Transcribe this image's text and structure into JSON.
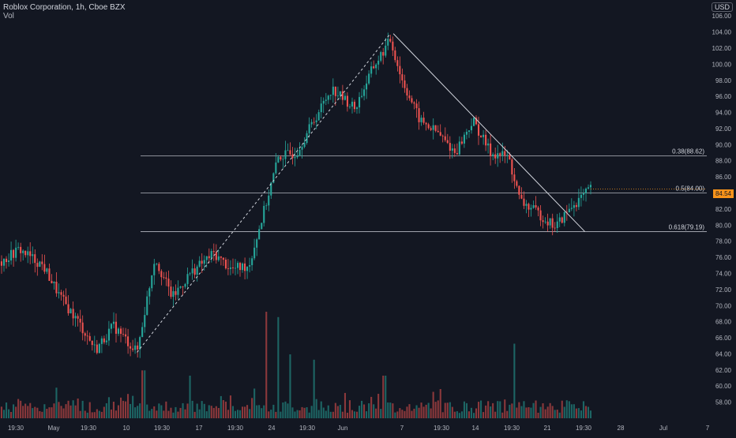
{
  "header": {
    "title": "Roblox Corporation, 1h, Cboe BZX",
    "volume_label": "Vol"
  },
  "currency_label": "USD",
  "colors": {
    "background": "#131722",
    "up": "#26a69a",
    "down": "#ef5350",
    "grid": "#1e222d",
    "axis_text": "#b2b5be",
    "line": "#d1d4dc",
    "price_badge": "#f7931a"
  },
  "chart_data": {
    "type": "candlestick",
    "title": "Roblox Corporation, 1h, Cboe BZX",
    "ylim": [
      56,
      107
    ],
    "y_ticks": [
      58,
      60,
      62,
      64,
      66,
      68,
      70,
      72,
      74,
      76,
      78,
      80,
      82,
      84,
      86,
      88,
      90,
      92,
      94,
      96,
      98,
      100,
      102,
      104,
      106
    ],
    "x_tick_labels": [
      "19:30",
      "May",
      "19:30",
      "10",
      "19:30",
      "17",
      "19:30",
      "24",
      "19:30",
      "Jun",
      "7",
      "19:30",
      "14",
      "19:30",
      "21",
      "19:30",
      "28",
      "Jul",
      "7"
    ],
    "price_path": [
      {
        "t": 0,
        "p": 75.5
      },
      {
        "t": 0.03,
        "p": 77.0
      },
      {
        "t": 0.07,
        "p": 75.0
      },
      {
        "t": 0.1,
        "p": 71.0
      },
      {
        "t": 0.13,
        "p": 68.0
      },
      {
        "t": 0.16,
        "p": 64.5
      },
      {
        "t": 0.19,
        "p": 67.5
      },
      {
        "t": 0.23,
        "p": 64.2
      },
      {
        "t": 0.26,
        "p": 76.0
      },
      {
        "t": 0.29,
        "p": 71.0
      },
      {
        "t": 0.32,
        "p": 74.0
      },
      {
        "t": 0.36,
        "p": 76.5
      },
      {
        "t": 0.39,
        "p": 74.5
      },
      {
        "t": 0.42,
        "p": 75.0
      },
      {
        "t": 0.45,
        "p": 83.0
      },
      {
        "t": 0.47,
        "p": 88.5
      },
      {
        "t": 0.5,
        "p": 89.0
      },
      {
        "t": 0.53,
        "p": 93.0
      },
      {
        "t": 0.56,
        "p": 97.0
      },
      {
        "t": 0.6,
        "p": 94.5
      },
      {
        "t": 0.63,
        "p": 99.5
      },
      {
        "t": 0.66,
        "p": 103.0
      },
      {
        "t": 0.68,
        "p": 98.0
      },
      {
        "t": 0.71,
        "p": 93.0
      },
      {
        "t": 0.74,
        "p": 91.5
      },
      {
        "t": 0.77,
        "p": 89.0
      },
      {
        "t": 0.8,
        "p": 93.0
      },
      {
        "t": 0.83,
        "p": 89.0
      },
      {
        "t": 0.86,
        "p": 88.5
      },
      {
        "t": 0.88,
        "p": 83.0
      },
      {
        "t": 0.91,
        "p": 81.5
      },
      {
        "t": 0.94,
        "p": 79.8
      },
      {
        "t": 0.97,
        "p": 82.5
      },
      {
        "t": 1.0,
        "p": 84.5
      }
    ],
    "volume_spikes": [
      {
        "t": 0.45,
        "v": 1.0
      },
      {
        "t": 0.47,
        "v": 0.95
      },
      {
        "t": 0.53,
        "v": 0.55
      },
      {
        "t": 0.87,
        "v": 0.7
      },
      {
        "t": 0.24,
        "v": 0.45
      },
      {
        "t": 0.32,
        "v": 0.4
      },
      {
        "t": 0.49,
        "v": 0.6
      },
      {
        "t": 0.65,
        "v": 0.4
      }
    ],
    "trendlines": [
      {
        "style": "dashed",
        "from": {
          "t": 0.23,
          "p": 64.2
        },
        "to": {
          "t": 0.66,
          "p": 103.8
        }
      },
      {
        "style": "solid",
        "from": {
          "t": 0.665,
          "p": 103.8
        },
        "to": {
          "t": 0.99,
          "p": 79.2
        }
      }
    ],
    "fib_levels": [
      {
        "ratio": 0.382,
        "price": 88.62,
        "label": "0.38(88.62)"
      },
      {
        "ratio": 0.5,
        "price": 84.0,
        "label": "0.5(84.00)"
      },
      {
        "ratio": 0.618,
        "price": 79.19,
        "label": "0.618(79.19)"
      }
    ],
    "last_price": 84.5,
    "last_price_label": "84.54",
    "grid": false
  }
}
